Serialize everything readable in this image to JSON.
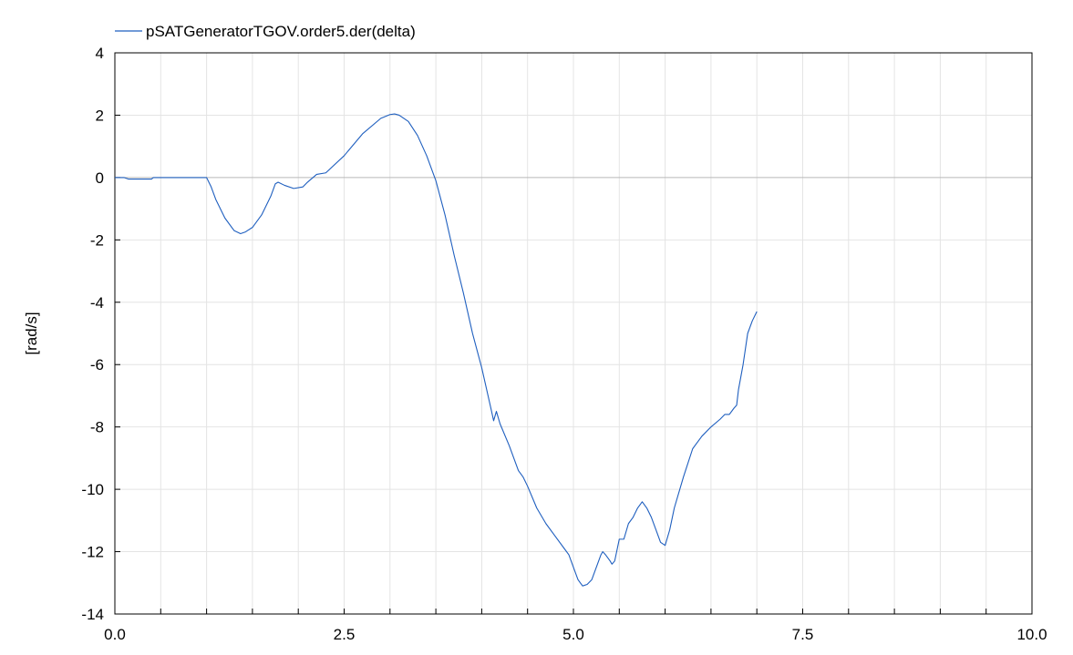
{
  "chart_data": {
    "type": "line",
    "title": "",
    "xlabel": "",
    "ylabel": "[rad/s]",
    "xlim": [
      0,
      10
    ],
    "ylim": [
      -14,
      4
    ],
    "x_ticks": [
      0,
      2.5,
      5,
      7.5,
      10
    ],
    "x_tick_labels": [
      "0.0",
      "2.5",
      "5.0",
      "7.5",
      "10.0"
    ],
    "x_minor_step": 0.5,
    "y_ticks": [
      -14,
      -12,
      -10,
      -8,
      -6,
      -4,
      -2,
      0,
      2,
      4
    ],
    "y_tick_labels": [
      "-14",
      "-12",
      "-10",
      "-8",
      "-6",
      "-4",
      "-2",
      "0",
      "2",
      "4"
    ],
    "grid": true,
    "legend_position": "top-left",
    "colors": {
      "series": "#1f5fbf",
      "grid": "#e4e4e4",
      "zero": "#b8b8b8"
    },
    "series": [
      {
        "name": "pSATGeneratorTGOV.order5.der(delta)",
        "x": [
          0,
          0.1,
          0.15,
          0.3,
          0.4,
          0.42,
          0.6,
          0.8,
          1.0,
          1.05,
          1.1,
          1.2,
          1.3,
          1.37,
          1.42,
          1.5,
          1.6,
          1.7,
          1.75,
          1.78,
          1.85,
          1.95,
          2.05,
          2.1,
          2.2,
          2.3,
          2.5,
          2.7,
          2.9,
          3.0,
          3.05,
          3.1,
          3.2,
          3.3,
          3.4,
          3.5,
          3.6,
          3.7,
          3.8,
          3.9,
          4.0,
          4.1,
          4.13,
          4.16,
          4.2,
          4.3,
          4.4,
          4.45,
          4.5,
          4.6,
          4.7,
          4.8,
          4.9,
          4.95,
          5.0,
          5.05,
          5.1,
          5.15,
          5.2,
          5.3,
          5.32,
          5.35,
          5.4,
          5.42,
          5.45,
          5.5,
          5.55,
          5.6,
          5.65,
          5.7,
          5.75,
          5.8,
          5.85,
          5.9,
          5.95,
          6.0,
          6.05,
          6.1,
          6.2,
          6.3,
          6.4,
          6.5,
          6.6,
          6.65,
          6.7,
          6.75,
          6.78,
          6.8,
          6.85,
          6.9,
          6.95,
          7.0
        ],
        "y": [
          0,
          0,
          -0.05,
          -0.05,
          -0.05,
          0,
          0,
          0,
          0,
          -0.3,
          -0.7,
          -1.3,
          -1.7,
          -1.8,
          -1.75,
          -1.6,
          -1.2,
          -0.6,
          -0.2,
          -0.15,
          -0.25,
          -0.35,
          -0.3,
          -0.15,
          0.1,
          0.15,
          0.7,
          1.4,
          1.9,
          2.02,
          2.04,
          2.0,
          1.8,
          1.35,
          0.7,
          -0.1,
          -1.2,
          -2.5,
          -3.7,
          -5.0,
          -6.1,
          -7.4,
          -7.8,
          -7.5,
          -7.9,
          -8.6,
          -9.4,
          -9.6,
          -9.9,
          -10.6,
          -11.1,
          -11.5,
          -11.9,
          -12.1,
          -12.5,
          -12.9,
          -13.1,
          -13.05,
          -12.9,
          -12.1,
          -12.0,
          -12.1,
          -12.3,
          -12.4,
          -12.3,
          -11.6,
          -11.6,
          -11.1,
          -10.9,
          -10.6,
          -10.4,
          -10.6,
          -10.9,
          -11.3,
          -11.7,
          -11.8,
          -11.3,
          -10.6,
          -9.6,
          -8.7,
          -8.3,
          -8.0,
          -7.75,
          -7.6,
          -7.6,
          -7.4,
          -7.3,
          -6.8,
          -6.0,
          -5.0,
          -4.6,
          -4.3
        ]
      }
    ]
  }
}
